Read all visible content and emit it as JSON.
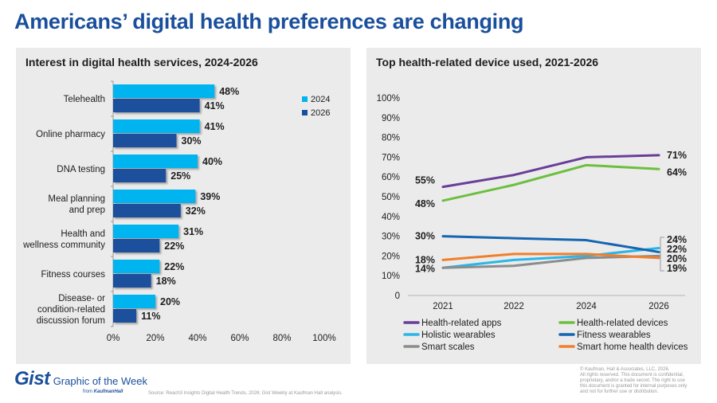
{
  "page": {
    "title": "Americans’ digital health preferences are changing",
    "footer": {
      "brand": "Gist",
      "brand_sub": "Graphic of the Week",
      "from_text": "from",
      "from_company": "KaufmanHall",
      "source": "Source: Reach3 Insights Digital Health Trends, 2026; Gist Weekly at Kaufman Hall analysis.",
      "copyright_lines": [
        "© Kaufman, Hall & Associates, LLC, 2026.",
        "All rights reserved. This document is confidential,",
        "proprietary, and/or a trade secret. The right to use",
        "this document is granted for internal purposes only",
        "and not for further use or distribution."
      ]
    }
  },
  "chart_data": [
    {
      "type": "bar",
      "orientation": "horizontal",
      "title": "Interest in digital health services, 2024-2026",
      "categories": [
        [
          "Telehealth"
        ],
        [
          "Online pharmacy"
        ],
        [
          "DNA testing"
        ],
        [
          "Meal planning",
          "and prep"
        ],
        [
          "Health and",
          "wellness community"
        ],
        [
          "Fitness courses"
        ],
        [
          "Disease- or",
          "condition-related",
          "discussion forum"
        ]
      ],
      "series": [
        {
          "name": "2024",
          "color": "#00b4f0",
          "values": [
            48,
            41,
            40,
            39,
            31,
            22,
            20
          ]
        },
        {
          "name": "2026",
          "color": "#1a4f9c",
          "values": [
            41,
            30,
            25,
            32,
            22,
            18,
            11
          ]
        }
      ],
      "xlim": [
        0,
        100
      ],
      "xticks": [
        "0%",
        "20%",
        "40%",
        "60%",
        "80%",
        "100%"
      ],
      "value_suffix": "%",
      "legend": "top-right",
      "grid": false
    },
    {
      "type": "line",
      "title": "Top health-related device used, 2021-2026",
      "x": [
        "2021",
        "2022",
        "2024",
        "2026"
      ],
      "series": [
        {
          "name": "Health-related apps",
          "color": "#6a3d9a",
          "values": [
            55,
            61,
            70,
            71
          ],
          "label_start": "55%",
          "label_end": "71%"
        },
        {
          "name": "Health-related devices",
          "color": "#6cbf3f",
          "values": [
            48,
            56,
            66,
            64
          ],
          "label_start": "48%",
          "label_end": "64%"
        },
        {
          "name": "Holistic wearables",
          "color": "#29b6e8",
          "values": [
            14,
            18,
            20,
            24
          ],
          "label_start": "",
          "label_end": "24%"
        },
        {
          "name": "Fitness wearables",
          "color": "#1565b0",
          "values": [
            30,
            29,
            28,
            22
          ],
          "label_start": "30%",
          "label_end": "22%"
        },
        {
          "name": "Smart scales",
          "color": "#8c8c8c",
          "values": [
            14,
            15,
            19,
            20
          ],
          "label_start": "14%",
          "label_end": "20%"
        },
        {
          "name": "Smart home health devices",
          "color": "#f07f2d",
          "values": [
            18,
            21,
            21,
            19
          ],
          "label_start": "18%",
          "label_end": "19%"
        }
      ],
      "ylim": [
        0,
        100
      ],
      "yticks": [
        "0",
        "10%",
        "20%",
        "30%",
        "40%",
        "50%",
        "60%",
        "70%",
        "80%",
        "90%",
        "100%"
      ],
      "legend": "bottom",
      "grid": false
    }
  ]
}
